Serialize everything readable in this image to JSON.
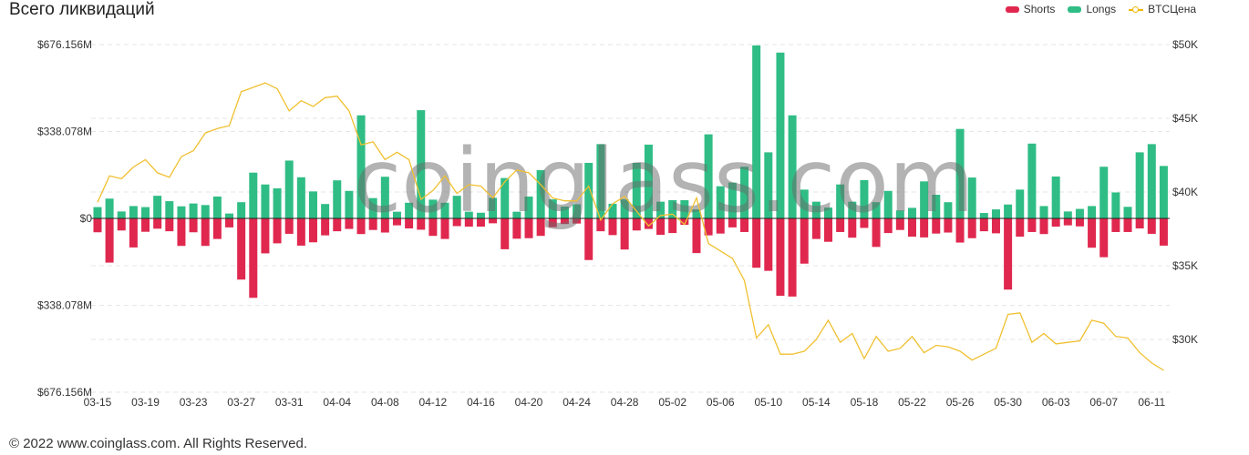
{
  "title": "Всего ликвидаций",
  "footer": "© 2022 www.coinglass.com. All Rights Reserved.",
  "watermark": "coinglass.com",
  "legend": [
    {
      "label": "Shorts",
      "color": "#e0284f"
    },
    {
      "label": "Longs",
      "color": "#2fbd85"
    },
    {
      "label": "BTCЦена",
      "color": "#f0b90b"
    }
  ],
  "chart_data": {
    "type": "bar",
    "title": "Всего ликвидаций",
    "left_axis": {
      "ticks": [
        "$676.156M",
        "$338.078M",
        "$0",
        "$338.078M",
        "$676.156M"
      ],
      "range": [
        -676.156,
        676.156
      ],
      "unit": "M USD"
    },
    "right_axis": {
      "ticks": [
        "$50K",
        "$45K",
        "$40K",
        "$35K",
        "$30K"
      ],
      "range": [
        26500,
        50000
      ]
    },
    "x_ticks": [
      "03-15",
      "03-19",
      "03-23",
      "03-27",
      "03-31",
      "04-04",
      "04-08",
      "04-12",
      "04-16",
      "04-20",
      "04-24",
      "04-28",
      "05-02",
      "05-06",
      "05-10",
      "05-14",
      "05-18",
      "05-22",
      "05-26",
      "05-30",
      "06-03",
      "06-07",
      "06-11"
    ],
    "grid": true,
    "legend_position": "top-right",
    "categories": [
      "03-15",
      "03-16",
      "03-17",
      "03-18",
      "03-19",
      "03-20",
      "03-21",
      "03-22",
      "03-23",
      "03-24",
      "03-25",
      "03-26",
      "03-27",
      "03-28",
      "03-29",
      "03-30",
      "03-31",
      "04-01",
      "04-02",
      "04-03",
      "04-04",
      "04-05",
      "04-06",
      "04-07",
      "04-08",
      "04-09",
      "04-10",
      "04-11",
      "04-12",
      "04-13",
      "04-14",
      "04-15",
      "04-16",
      "04-17",
      "04-18",
      "04-19",
      "04-20",
      "04-21",
      "04-22",
      "04-23",
      "04-24",
      "04-25",
      "04-26",
      "04-27",
      "04-28",
      "04-29",
      "04-30",
      "05-01",
      "05-02",
      "05-03",
      "05-04",
      "05-05",
      "05-06",
      "05-07",
      "05-08",
      "05-09",
      "05-10",
      "05-11",
      "05-12",
      "05-13",
      "05-14",
      "05-15",
      "05-16",
      "05-17",
      "05-18",
      "05-19",
      "05-20",
      "05-21",
      "05-22",
      "05-23",
      "05-24",
      "05-25",
      "05-26",
      "05-27",
      "05-28",
      "05-29",
      "05-30",
      "05-31",
      "06-01",
      "06-02",
      "06-03",
      "06-04",
      "06-05",
      "06-06",
      "06-07",
      "06-08",
      "06-09",
      "06-10",
      "06-11",
      "06-12"
    ],
    "series": [
      {
        "name": "Longs",
        "axis": "left",
        "values": [
          44,
          77,
          27,
          48,
          44,
          88,
          67,
          47,
          58,
          52,
          85,
          19,
          63,
          178,
          132,
          117,
          225,
          160,
          105,
          56,
          148,
          107,
          401,
          79,
          162,
          26,
          61,
          421,
          73,
          61,
          88,
          26,
          22,
          80,
          157,
          26,
          85,
          188,
          74,
          46,
          55,
          216,
          289,
          57,
          74,
          216,
          287,
          65,
          71,
          71,
          35,
          327,
          125,
          139,
          201,
          673,
          257,
          645,
          401,
          112,
          65,
          42,
          132,
          65,
          149,
          63,
          107,
          31,
          41,
          144,
          92,
          63,
          348,
          159,
          21,
          35,
          54,
          112,
          291,
          48,
          163,
          27,
          37,
          48,
          201,
          101,
          45,
          257,
          289,
          204
        ]
      },
      {
        "name": "Shorts",
        "axis": "left",
        "values": [
          54,
          172,
          47,
          113,
          52,
          40,
          50,
          107,
          54,
          107,
          80,
          35,
          238,
          309,
          136,
          97,
          60,
          106,
          93,
          66,
          50,
          41,
          61,
          45,
          55,
          27,
          39,
          44,
          68,
          80,
          30,
          32,
          32,
          19,
          120,
          79,
          77,
          68,
          34,
          22,
          20,
          162,
          50,
          65,
          121,
          47,
          41,
          64,
          57,
          25,
          135,
          66,
          59,
          35,
          53,
          192,
          204,
          301,
          304,
          176,
          80,
          91,
          53,
          75,
          37,
          111,
          57,
          45,
          71,
          74,
          59,
          55,
          94,
          77,
          50,
          58,
          277,
          71,
          53,
          61,
          32,
          27,
          31,
          114,
          151,
          53,
          53,
          39,
          60,
          106
        ]
      },
      {
        "name": "BTCЦена",
        "axis": "right",
        "type": "line",
        "values": [
          39300,
          41100,
          40900,
          41700,
          42200,
          41300,
          41000,
          42400,
          42800,
          44000,
          44300,
          44500,
          46800,
          47100,
          47400,
          47000,
          45500,
          46200,
          45800,
          46400,
          46500,
          45500,
          43200,
          43400,
          42200,
          42700,
          42200,
          39500,
          40100,
          41100,
          39900,
          40500,
          40400,
          39600,
          40700,
          41500,
          41300,
          40500,
          39600,
          39400,
          39400,
          40400,
          38100,
          39200,
          39700,
          38700,
          37700,
          38400,
          38500,
          37800,
          39600,
          36500,
          36000,
          35500,
          34000,
          30100,
          31000,
          29000,
          29000,
          29200,
          30000,
          31300,
          29800,
          30400,
          28700,
          30200,
          29200,
          29400,
          30200,
          29100,
          29600,
          29500,
          29200,
          28600,
          29000,
          29400,
          31700,
          31800,
          29800,
          30400,
          29700,
          29800,
          29900,
          31300,
          31100,
          30200,
          30100,
          29100,
          28400,
          27900
        ]
      }
    ]
  }
}
